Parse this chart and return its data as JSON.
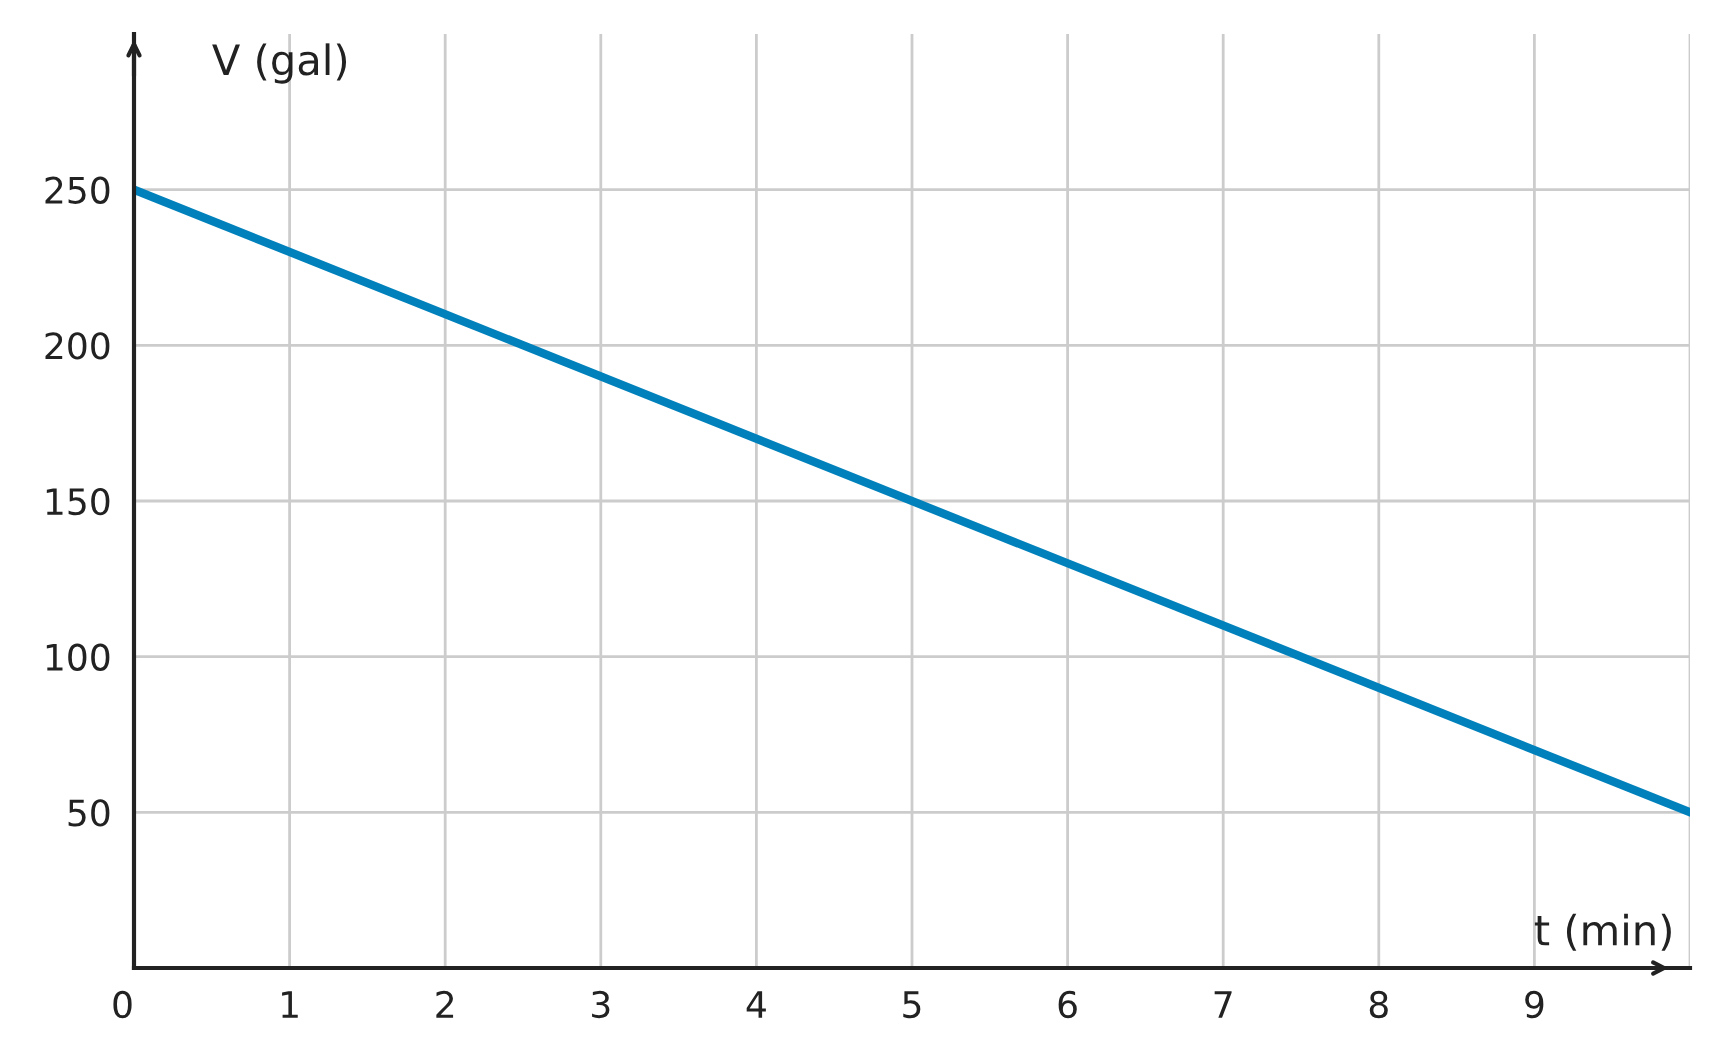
{
  "chart_data": {
    "type": "line",
    "xlabel": "t (min)",
    "ylabel": "V (gal)",
    "x": [
      0,
      10
    ],
    "series": [
      {
        "color": "#0081bb",
        "values": [
          250,
          50
        ]
      }
    ],
    "xlim": [
      0,
      10
    ],
    "ylim": [
      0,
      300
    ],
    "xticks": [
      {
        "value": 0,
        "label": "0"
      },
      1,
      2,
      3,
      4,
      5,
      6,
      7,
      8,
      9,
      {
        "value": 10,
        "label": null
      }
    ],
    "yticks": [
      50,
      100,
      150,
      200,
      250
    ],
    "grid": true,
    "legend": false,
    "marker": "none",
    "line_style": "solid"
  }
}
